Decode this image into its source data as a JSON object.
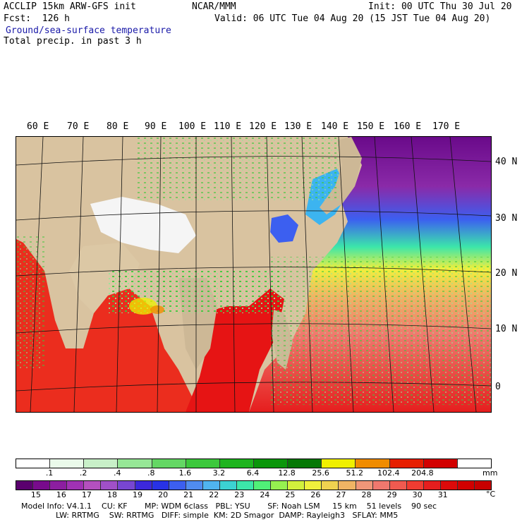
{
  "header": {
    "model": "ACCLIP 15km ARW-GFS init",
    "org": "NCAR/MMM",
    "init": "Init: 00 UTC Thu 30 Jul 20",
    "fcst": "Fcst:  126 h",
    "valid": "Valid: 06 UTC Tue 04 Aug 20 (15 JST Tue 04 Aug 20)",
    "field1": "Ground/sea-surface temperature",
    "field2": "Total precip. in past 3 h"
  },
  "map": {
    "lon_labels": [
      "60 E",
      "70 E",
      "80 E",
      "90 E",
      "100 E",
      "110 E",
      "120 E",
      "130 E",
      "140 E",
      "150 E",
      "160 E",
      "170 E"
    ],
    "lat_labels": [
      "40 N",
      "30 N",
      "20 N",
      "10 N",
      "0"
    ]
  },
  "precip_scale": {
    "unit": "mm",
    "ticks": [
      ".1",
      ".2",
      ".4",
      ".8",
      "1.6",
      "3.2",
      "6.4",
      "12.8",
      "25.6",
      "51.2",
      "102.4",
      "204.8"
    ],
    "colors": [
      "#ffffff",
      "#eafaea",
      "#c8f0c8",
      "#96e696",
      "#64d764",
      "#3cc83c",
      "#1eb41e",
      "#0a960a",
      "#057805",
      "#f0f000",
      "#f08c00",
      "#e61e00",
      "#d20000",
      "#ffffff"
    ]
  },
  "temp_scale": {
    "unit": "°C",
    "ticks": [
      "15",
      "16",
      "17",
      "18",
      "19",
      "20",
      "21",
      "22",
      "23",
      "24",
      "25",
      "26",
      "27",
      "28",
      "29",
      "30",
      "31"
    ],
    "colors": [
      "#5a006e",
      "#780a8c",
      "#8c1ea0",
      "#a032b4",
      "#b450be",
      "#a050c8",
      "#7846d2",
      "#3c28dc",
      "#2832e6",
      "#3c5ff0",
      "#508cf0",
      "#50b4f0",
      "#3cd2d2",
      "#3ce6aa",
      "#50f078",
      "#96f050",
      "#d2f03c",
      "#f0f03c",
      "#f0d250",
      "#f0b464",
      "#f09678",
      "#f0786e",
      "#f05a50",
      "#f03c32",
      "#e61e1e",
      "#dc0a0a",
      "#d20000",
      "#c80000"
    ]
  },
  "footer": {
    "line1": "Model Info: V4.1.1    CU: KF       MP: WDM 6class   PBL: YSU       SF: Noah LSM     15 km    51 levels    90 sec",
    "line2": "              LW: RRTMG    SW: RRTMG   DIFF: simple  KM: 2D Smagor  DAMP: Rayleigh3   SFLAY: MM5"
  }
}
